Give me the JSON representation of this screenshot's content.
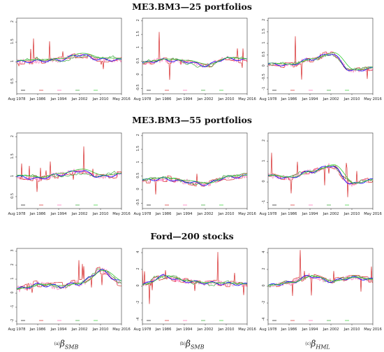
{
  "rows": [
    {
      "title": "ME3.BM3—25 portfolios"
    },
    {
      "title": "ME3.BM3—55 portfolios"
    },
    {
      "title": "Ford—200 stocks"
    }
  ],
  "x_labels": [
    {
      "prefix": "(a)",
      "symbol": "β",
      "sub": "SMB"
    },
    {
      "prefix": "(b)",
      "symbol": "β",
      "sub": "SMB"
    },
    {
      "prefix": "(c)",
      "symbol": "β",
      "sub": "HML"
    }
  ],
  "colors": {
    "window_5": "#d62728",
    "other_a": "#ff69b4",
    "other_b": "#2ca02c",
    "average": "#0000ff",
    "rolling": "#32cd32",
    "kalman": "#111111"
  },
  "chart_data": [
    {
      "type": "line",
      "row": 0,
      "col": 0,
      "title": "ME3.BM3—25 portfolios",
      "x": [
        "Aug 1978",
        "Jan 1986",
        "Jan 1994",
        "Jan 2002",
        "Jan 2010",
        "May 2016"
      ],
      "y_ticks": [
        0.5,
        1.0,
        1.5,
        2.0
      ],
      "ylim": [
        0.2,
        2.1
      ],
      "base": 1.0,
      "spread": 0.08,
      "spikes": 0.5,
      "series": [
        {
          "name": "",
          "values": [
            1.0,
            1.02,
            1.05,
            1.18,
            1.06,
            1.05
          ]
        }
      ]
    },
    {
      "type": "line",
      "row": 0,
      "col": 1,
      "title": "ME3.BM3—25 portfolios",
      "x": [
        "Aug 1978",
        "Jan 1986",
        "Jan 1994",
        "Jan 2002",
        "Jan 2010",
        "May 2016"
      ],
      "y_ticks": [
        -0.5,
        0.0,
        0.5,
        1.0,
        1.5,
        2.0
      ],
      "ylim": [
        -0.7,
        2.1
      ],
      "base": 0.45,
      "spread": 0.12,
      "spikes": 0.9,
      "series": [
        {
          "name": "",
          "values": [
            0.45,
            0.55,
            0.5,
            0.35,
            0.6,
            0.55
          ]
        }
      ]
    },
    {
      "type": "line",
      "row": 0,
      "col": 2,
      "title": "ME3.BM3—25 portfolios",
      "x": [
        "Aug 1978",
        "Jan 1986",
        "Jan 1994",
        "Jan 2002",
        "Jan 2010",
        "May 2016"
      ],
      "y_ticks": [
        -1.0,
        -0.5,
        0.0,
        0.5,
        1.0,
        1.5,
        2.0
      ],
      "ylim": [
        -1.2,
        2.1
      ],
      "base": 0.1,
      "spread": 0.12,
      "spikes": 1.2,
      "series": [
        {
          "name": "",
          "values": [
            0.1,
            0.05,
            0.3,
            0.55,
            -0.2,
            -0.1
          ]
        }
      ]
    },
    {
      "type": "line",
      "row": 1,
      "col": 0,
      "title": "ME3.BM3—55 portfolios",
      "x": [
        "Aug 1978",
        "Jan 1986",
        "Jan 1994",
        "Jan 2002",
        "Jan 2010",
        "May 2016"
      ],
      "y_ticks": [
        0.5,
        1.0,
        1.5,
        2.0
      ],
      "ylim": [
        0.2,
        2.1
      ],
      "base": 1.0,
      "spread": 0.08,
      "spikes": 0.6,
      "series": [
        {
          "name": "",
          "values": [
            1.0,
            0.95,
            1.05,
            1.15,
            1.0,
            1.05
          ]
        }
      ]
    },
    {
      "type": "line",
      "row": 1,
      "col": 1,
      "title": "ME3.BM3—55 portfolios",
      "x": [
        "Aug 1978",
        "Jan 1986",
        "Jan 1994",
        "Jan 2002",
        "Jan 2010",
        "May 2016"
      ],
      "y_ticks": [
        -0.5,
        0.0,
        0.5,
        1.0,
        1.5,
        2.0
      ],
      "ylim": [
        -0.7,
        2.1
      ],
      "base": 0.35,
      "spread": 0.12,
      "spikes": 0.8,
      "series": [
        {
          "name": "",
          "values": [
            0.35,
            0.4,
            0.3,
            0.2,
            0.45,
            0.5
          ]
        }
      ]
    },
    {
      "type": "line",
      "row": 1,
      "col": 2,
      "title": "ME3.BM3—55 portfolios",
      "x": [
        "Aug 1978",
        "Jan 1986",
        "Jan 1994",
        "Jan 2002",
        "Jan 2010",
        "May 2016"
      ],
      "y_ticks": [
        -1,
        0,
        1,
        2
      ],
      "ylim": [
        -1.3,
        2.4
      ],
      "base": 0.3,
      "spread": 0.15,
      "spikes": 1.2,
      "series": [
        {
          "name": "",
          "values": [
            0.3,
            0.2,
            0.5,
            0.8,
            -0.1,
            0.1
          ]
        }
      ]
    },
    {
      "type": "line",
      "row": 2,
      "col": 0,
      "title": "Ford—200 stocks",
      "x": [
        "Aug 1978",
        "Jan 1986",
        "Jan 1994",
        "Jan 2002",
        "Jan 2010",
        "May 2016"
      ],
      "y_ticks": [
        -2,
        -1,
        0,
        1,
        2,
        3
      ],
      "ylim": [
        -2.2,
        3.2
      ],
      "base": 0.5,
      "spread": 0.3,
      "spikes": 2.0,
      "series": [
        {
          "name": "",
          "values": [
            0.3,
            0.6,
            0.5,
            0.7,
            1.6,
            0.8
          ]
        }
      ]
    },
    {
      "type": "line",
      "row": 2,
      "col": 1,
      "title": "Ford—200 stocks",
      "x": [
        "Aug 1978",
        "Jan 1986",
        "Jan 1994",
        "Jan 2002",
        "Jan 2010",
        "May 2016"
      ],
      "y_ticks": [
        -4,
        -2,
        0,
        2,
        4
      ],
      "ylim": [
        -4.5,
        4.5
      ],
      "base": 0.3,
      "spread": 0.4,
      "spikes": 3.5,
      "series": [
        {
          "name": "",
          "values": [
            0.2,
            1.2,
            0.6,
            0.4,
            0.3,
            0.2
          ]
        }
      ]
    },
    {
      "type": "line",
      "row": 2,
      "col": 2,
      "title": "Ford—200 stocks",
      "x": [
        "Aug 1978",
        "Jan 1986",
        "Jan 1994",
        "Jan 2002",
        "Jan 2010",
        "May 2016"
      ],
      "y_ticks": [
        -4,
        -2,
        0,
        2,
        4
      ],
      "ylim": [
        -4.5,
        4.5
      ],
      "base": 0.2,
      "spread": 0.4,
      "spikes": 3.0,
      "series": [
        {
          "name": "",
          "values": [
            0.1,
            0.4,
            1.2,
            0.6,
            1.0,
            0.8
          ]
        }
      ]
    }
  ]
}
